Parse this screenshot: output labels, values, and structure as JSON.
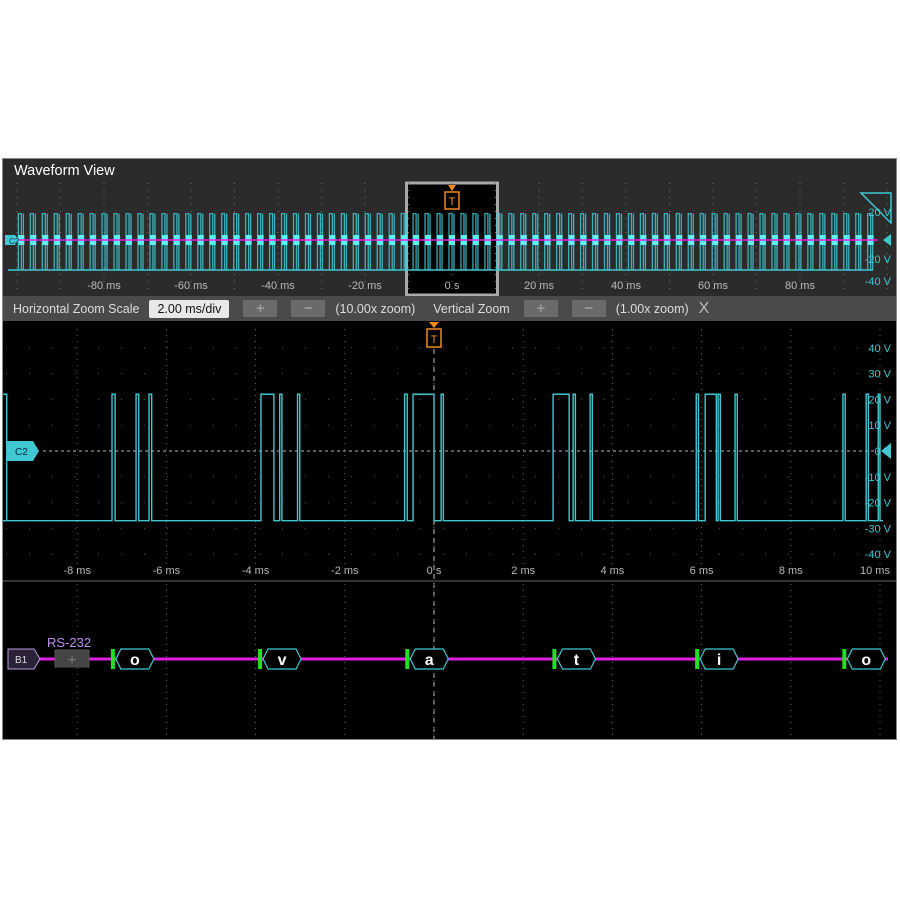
{
  "window": {
    "title": "Waveform View"
  },
  "overview": {
    "x_ticks": [
      "-80 ms",
      "-60 ms",
      "-40 ms",
      "-20 ms",
      "0 s",
      "20 ms",
      "40 ms",
      "60 ms",
      "80 ms"
    ],
    "x_tick_values": [
      -80,
      -60,
      -40,
      -20,
      0,
      20,
      40,
      60,
      80
    ],
    "y_ticks": [
      "20 V",
      "-20 V",
      "-40 V"
    ],
    "channel_label": "C2",
    "zoom_box_ms": [
      -10,
      10
    ],
    "trigger_label": "T"
  },
  "zoom_bar": {
    "h_label": "Horizontal Zoom Scale",
    "h_value": "2.00 ms/div",
    "plus": "+",
    "minus": "−",
    "h_zoom": "(10.00x zoom)",
    "v_label": "Vertical Zoom",
    "v_zoom": "(1.00x zoom)",
    "close": "X"
  },
  "chart_data": {
    "type": "line",
    "x_unit": "ms",
    "xlim": [
      -10,
      10
    ],
    "ylim": [
      -40,
      40
    ],
    "x_ticks": [
      "-8 ms",
      "-6 ms",
      "-4 ms",
      "-2 ms",
      "0 s",
      "2 ms",
      "4 ms",
      "6 ms",
      "8 ms",
      "10 ms"
    ],
    "x_tick_values": [
      -8,
      -6,
      -4,
      -2,
      0,
      2,
      4,
      6,
      8,
      10
    ],
    "y_ticks": [
      "40 V",
      "30 V",
      "20 V",
      "10 V",
      "0 V",
      "-10 V",
      "-20 V",
      "-30 V",
      "-40 V"
    ],
    "y_tick_values": [
      40,
      30,
      20,
      10,
      0,
      -10,
      -20,
      -30,
      -40
    ],
    "low_level_v": -27,
    "high_level_v": 22,
    "high_pulses_ms": [
      [
        -9.7,
        -9.58
      ],
      [
        -7.22,
        -7.15
      ],
      [
        -6.68,
        -6.62
      ],
      [
        -6.39,
        -6.33
      ],
      [
        -3.88,
        -3.59
      ],
      [
        -3.46,
        -3.41
      ],
      [
        -3.06,
        -3.01
      ],
      [
        -0.66,
        -0.6
      ],
      [
        -0.47,
        0.0
      ],
      [
        0.16,
        0.21
      ],
      [
        2.67,
        3.03
      ],
      [
        3.12,
        3.17
      ],
      [
        3.5,
        3.55
      ],
      [
        5.88,
        5.93
      ],
      [
        6.08,
        6.33
      ],
      [
        6.37,
        6.42
      ],
      [
        6.75,
        6.8
      ],
      [
        9.17,
        9.22
      ],
      [
        9.69,
        9.74
      ],
      [
        9.96,
        10
      ]
    ],
    "channel_label": "C2",
    "trigger_label": "T",
    "color": "#3fc8d2"
  },
  "bus": {
    "label": "B1",
    "protocol": "RS-232",
    "add": "+",
    "packets": [
      {
        "text": "o",
        "t_ms": -7.2
      },
      {
        "text": "v",
        "t_ms": -3.9
      },
      {
        "text": "a",
        "t_ms": -0.6
      },
      {
        "text": "t",
        "t_ms": 2.7
      },
      {
        "text": "i",
        "t_ms": 5.9
      },
      {
        "text": "o",
        "t_ms": 9.2
      }
    ],
    "color": "#e020e0"
  },
  "colors": {
    "channel": "#3fc8d2",
    "trigger": "#f08a1c",
    "bus": "#e020e0",
    "packet_start": "#22e022"
  }
}
